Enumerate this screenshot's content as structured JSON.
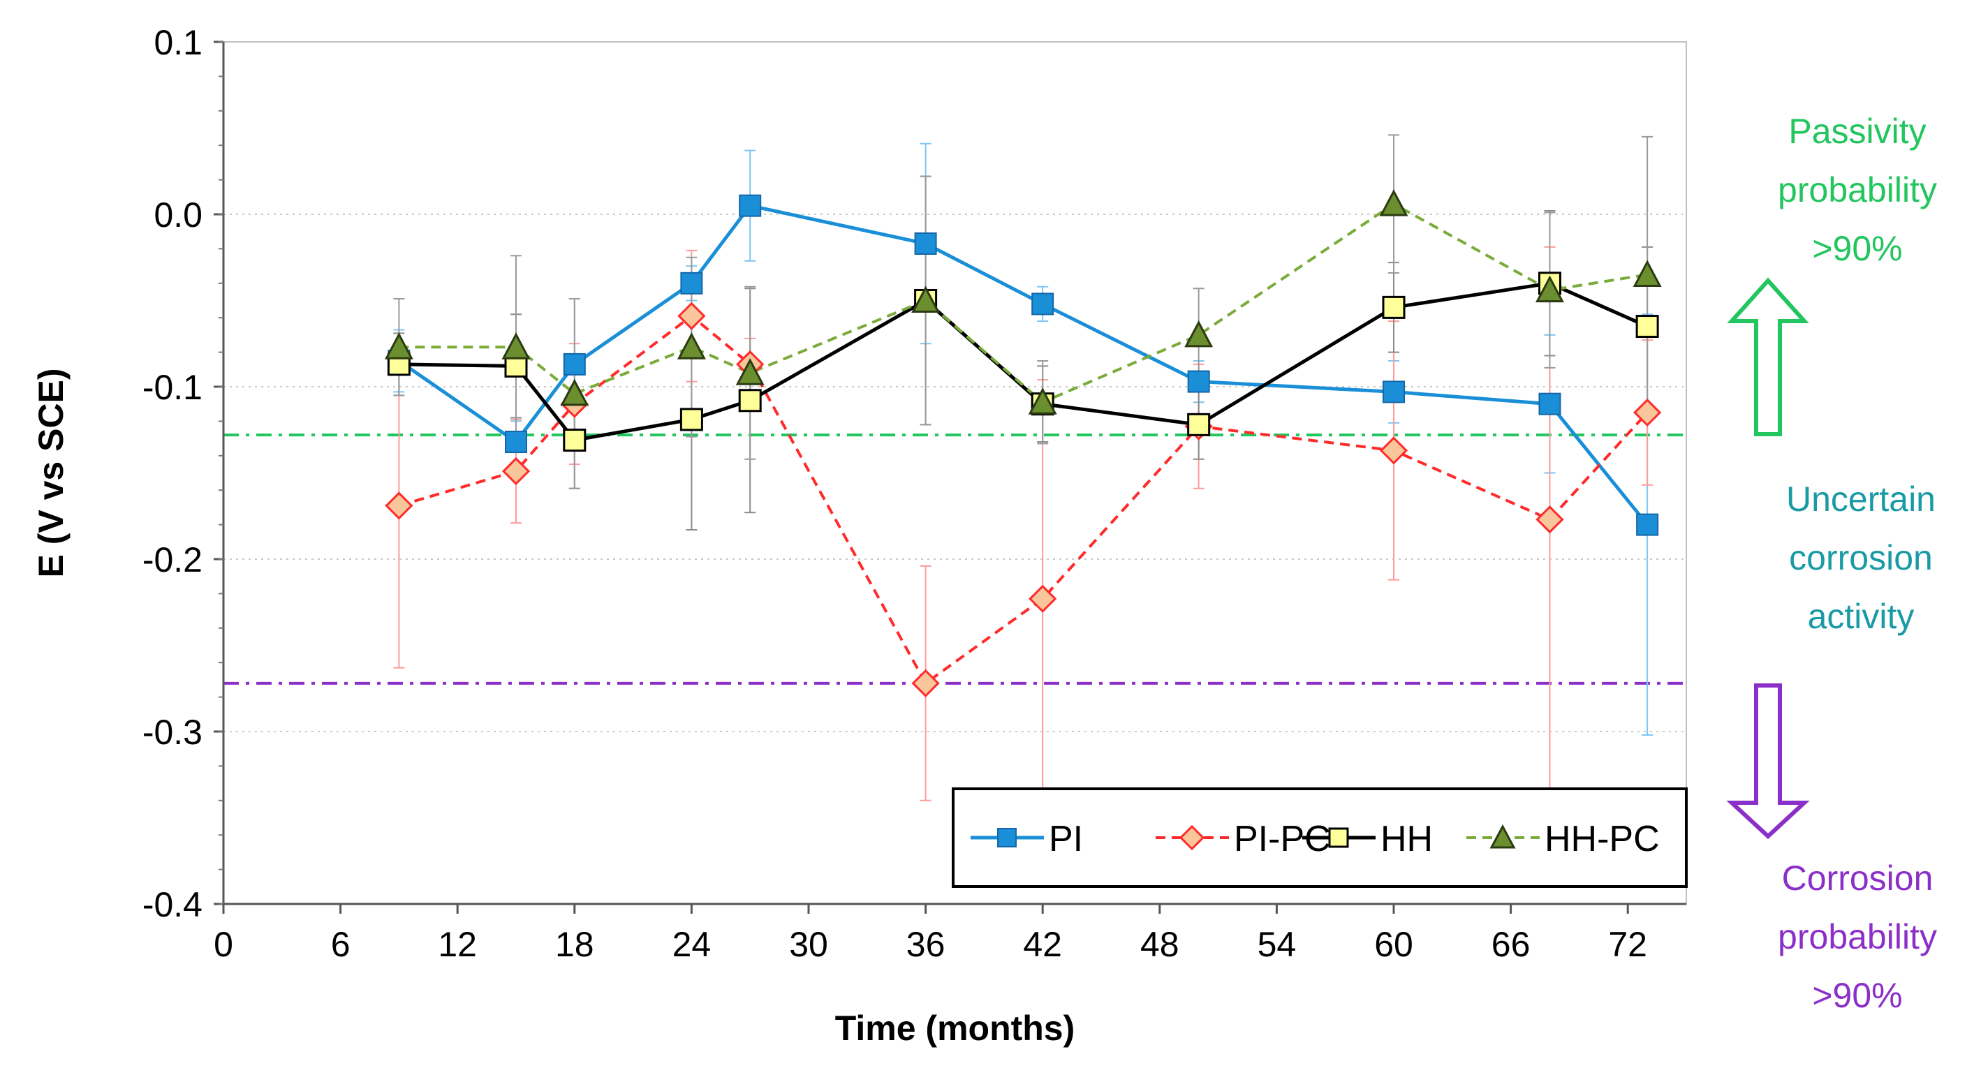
{
  "chart_data": {
    "type": "line",
    "xlabel": "Time (months)",
    "ylabel": "E (V vs SCE)",
    "xlim": [
      0,
      75
    ],
    "ylim": [
      -0.4,
      0.1
    ],
    "xticks": [
      0,
      6,
      12,
      18,
      24,
      30,
      36,
      42,
      48,
      54,
      60,
      66,
      72
    ],
    "xtick_labels": [
      "0",
      "6",
      "12",
      "18",
      "24",
      "30",
      "36",
      "42",
      "48",
      "54",
      "60",
      "66",
      "72"
    ],
    "yticks": [
      -0.4,
      -0.3,
      -0.2,
      -0.1,
      0.0,
      0.1
    ],
    "ytick_labels": [
      "-0.4",
      "-0.3",
      "-0.2",
      "-0.1",
      "0.0",
      "0.1"
    ],
    "grid": "horizontal dotted",
    "legend_position": "bottom-right",
    "series": [
      {
        "name": "PI",
        "color": "#1a8fd8",
        "line": "solid",
        "marker": "square-filled",
        "x": [
          9,
          15,
          18,
          24,
          27,
          36,
          42,
          50,
          60,
          68,
          73
        ],
        "y": [
          -0.085,
          -0.132,
          -0.087,
          -0.04,
          0.005,
          -0.017,
          -0.052,
          -0.097,
          -0.103,
          -0.11,
          -0.18
        ],
        "err": [
          0.018,
          0.012,
          0.038,
          0.01,
          0.032,
          0.058,
          0.01,
          0.012,
          0.018,
          0.04,
          0.122
        ]
      },
      {
        "name": "PI-PC",
        "color": "#ff2a2a",
        "line": "dashed",
        "marker": "diamond-open",
        "marker_fill": "#f9c59a",
        "x": [
          9,
          15,
          18,
          24,
          27,
          36,
          42,
          50,
          60,
          68,
          73
        ],
        "y": [
          -0.169,
          -0.149,
          -0.11,
          -0.059,
          -0.087,
          -0.272,
          -0.223,
          -0.123,
          -0.137,
          -0.177,
          -0.115
        ],
        "err": [
          0.094,
          0.03,
          0.035,
          0.038,
          0.015,
          0.068,
          0.127,
          0.036,
          0.075,
          0.158,
          0.042
        ]
      },
      {
        "name": "HH",
        "color": "#000000",
        "line": "solid",
        "marker": "square-open",
        "marker_fill": "#ffff99",
        "x": [
          9,
          15,
          18,
          24,
          27,
          36,
          42,
          50,
          60,
          68,
          73
        ],
        "y": [
          -0.087,
          -0.088,
          -0.131,
          -0.119,
          -0.108,
          -0.05,
          -0.11,
          -0.122,
          -0.054,
          -0.04,
          -0.065
        ],
        "err": [
          0.018,
          0.03,
          0.028,
          0.064,
          0.065,
          0.072,
          0.022,
          0.02,
          0.026,
          0.042,
          0.046
        ]
      },
      {
        "name": "HH-PC",
        "color": "#7aab3a",
        "line": "dashed",
        "marker": "triangle-filled",
        "marker_fill": "#6b8f2f",
        "x": [
          9,
          15,
          18,
          24,
          27,
          36,
          42,
          50,
          60,
          68,
          73
        ],
        "y": [
          -0.077,
          -0.077,
          -0.104,
          -0.077,
          -0.092,
          -0.05,
          -0.109,
          -0.07,
          0.006,
          -0.044,
          -0.035
        ],
        "err": [
          0.028,
          0.053,
          0.055,
          0.052,
          0.05,
          0.072,
          0.024,
          0.027,
          0.04,
          0.045,
          0.08
        ]
      }
    ],
    "reference_lines": [
      {
        "name": "passivity-threshold",
        "y": -0.128,
        "color": "#22c55e",
        "style": "dash-dot"
      },
      {
        "name": "corrosion-threshold",
        "y": -0.272,
        "color": "#8b2fc9",
        "style": "dash-dot"
      }
    ],
    "annotations": {
      "passivity": {
        "lines": [
          "Passivity",
          "probability",
          ">90%"
        ],
        "color": "#22c55e"
      },
      "uncertain": {
        "lines": [
          "Uncertain",
          "corrosion",
          "activity"
        ],
        "color": "#1a9aa5"
      },
      "corrosion": {
        "lines": [
          "Corrosion",
          "probability",
          ">90%"
        ],
        "color": "#8b2fc9"
      }
    }
  }
}
